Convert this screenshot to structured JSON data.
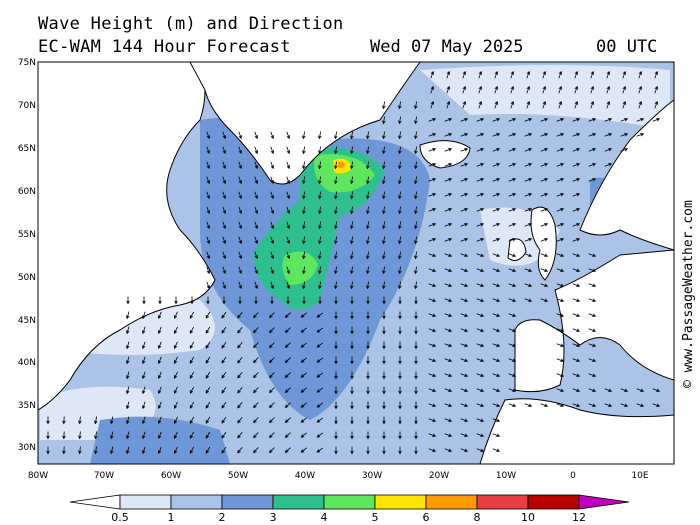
{
  "header": {
    "title": "Wave Height (m) and Direction",
    "model": "EC-WAM 144 Hour Forecast",
    "date": "Wed 07 May 2025",
    "time": "00 UTC"
  },
  "axes": {
    "lat_labels": [
      "75N",
      "70N",
      "65N",
      "60N",
      "55N",
      "50N",
      "45N",
      "40N",
      "35N",
      "30N"
    ],
    "lon_labels": [
      "80W",
      "70W",
      "60W",
      "50W",
      "40W",
      "30W",
      "20W",
      "10W",
      "0",
      "10E"
    ]
  },
  "watermark": "© www.PassageWeather.com",
  "colorbar": {
    "labels": [
      "0.5",
      "1",
      "2",
      "3",
      "4",
      "5",
      "6",
      "8",
      "10",
      "12"
    ],
    "colors": [
      "#dde7f5",
      "#aac3e6",
      "#6f96d6",
      "#2fbf8f",
      "#5ee65e",
      "#ffe600",
      "#ff9a00",
      "#e84040",
      "#b80000",
      "#c000c0"
    ]
  },
  "palette": {
    "land": "#ffffff",
    "coast": "#000000",
    "ocean_low": "#dde7f5",
    "ocean_1": "#aac3e6",
    "ocean_2": "#6f96d6",
    "ocean_3": "#2fbf8f",
    "ocean_4": "#5ee65e",
    "ocean_5": "#ffe600",
    "ocean_6": "#ff9a00"
  }
}
